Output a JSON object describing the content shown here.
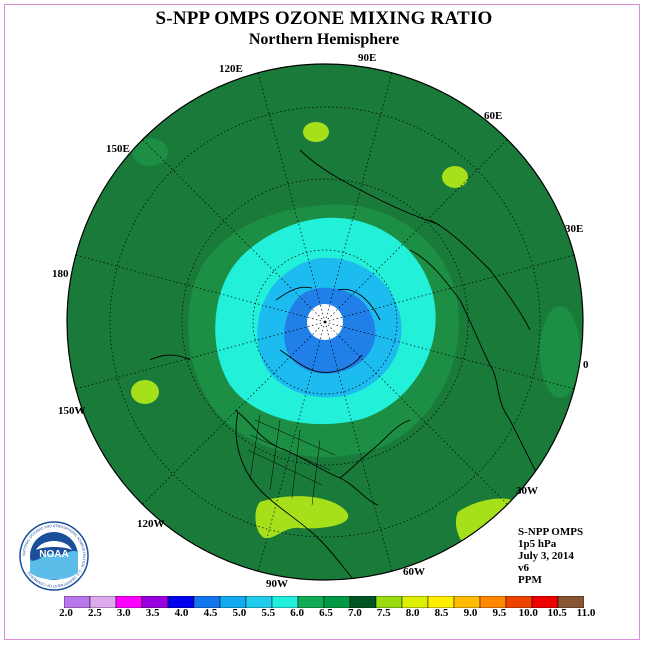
{
  "header": {
    "title": "S-NPP OMPS OZONE MIXING RATIO",
    "subtitle": "Northern Hemisphere"
  },
  "longitudes": {
    "90E": "90E",
    "60E": "60E",
    "30E": "30E",
    "zero": "0",
    "30W": "30W",
    "60W": "60W",
    "90W": "90W",
    "120W": "120W",
    "150W": "150W",
    "180": "180",
    "150E": "150E",
    "120E": "120E"
  },
  "info": {
    "instrument": "S-NPP OMPS",
    "pressure": "1p5 hPa",
    "date": "July 3, 2014",
    "version": "v6",
    "units": "PPM"
  },
  "logo": {
    "text": "NOAA",
    "ring_text": "NATIONAL OCEANIC AND ATMOSPHERIC ADMINISTRATION · U.S. DEPARTMENT OF COMMERCE"
  },
  "colorbar": {
    "ticks": [
      "2.0",
      "2.5",
      "3.0",
      "3.5",
      "4.0",
      "4.5",
      "5.0",
      "5.5",
      "6.0",
      "6.5",
      "7.0",
      "7.5",
      "8.0",
      "8.5",
      "9.0",
      "9.5",
      "10.0",
      "10.5",
      "11.0"
    ],
    "colors": [
      "#bb77ee",
      "#ddaaee",
      "#ff00ff",
      "#9900dd",
      "#0000ee",
      "#1177ee",
      "#11aaee",
      "#22ccee",
      "#22eedd",
      "#11aa55",
      "#009944",
      "#005522",
      "#99dd11",
      "#ddee00",
      "#ffee00",
      "#ffbb00",
      "#ff8800",
      "#ee4400",
      "#ee0000",
      "#885533"
    ]
  },
  "map_colors": {
    "bg": "#1a7a3a",
    "ring_dark": "#0d6a2e",
    "ring_mid": "#1d8f44",
    "aqua": "#22f0d8",
    "cyan": "#1cbcf0",
    "blue": "#2080e8",
    "pole": "#ffffff",
    "lime": "#a6e01a"
  }
}
